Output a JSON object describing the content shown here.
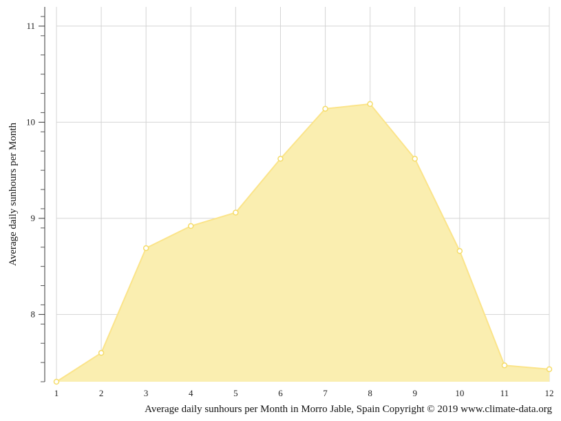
{
  "chart_data": {
    "type": "area",
    "title": "",
    "xlabel": "Average daily sunhours per Month in Morro Jable, Spain Copyright © 2019 www.climate-data.org",
    "ylabel": "Average daily sunhours per Month",
    "x": [
      1,
      2,
      3,
      4,
      5,
      6,
      7,
      8,
      9,
      10,
      11,
      12
    ],
    "x_tick_labels": [
      "1",
      "2",
      "3",
      "4",
      "5",
      "6",
      "7",
      "8",
      "9",
      "10",
      "11",
      "12"
    ],
    "y_ticks": [
      8,
      9,
      10,
      11
    ],
    "y_tick_labels": [
      "8",
      "9",
      "10",
      "11"
    ],
    "ylim": [
      7.3,
      11.2
    ],
    "xlim": [
      1,
      12
    ],
    "grid": true,
    "series": [
      {
        "values": [
          7.3,
          7.6,
          8.69,
          8.92,
          9.06,
          9.62,
          10.14,
          10.19,
          9.62,
          8.66,
          7.47,
          7.43
        ],
        "color": "#fbe48a",
        "fill_color": "#faeeb0",
        "marker_color": "#f5dc68"
      }
    ]
  }
}
